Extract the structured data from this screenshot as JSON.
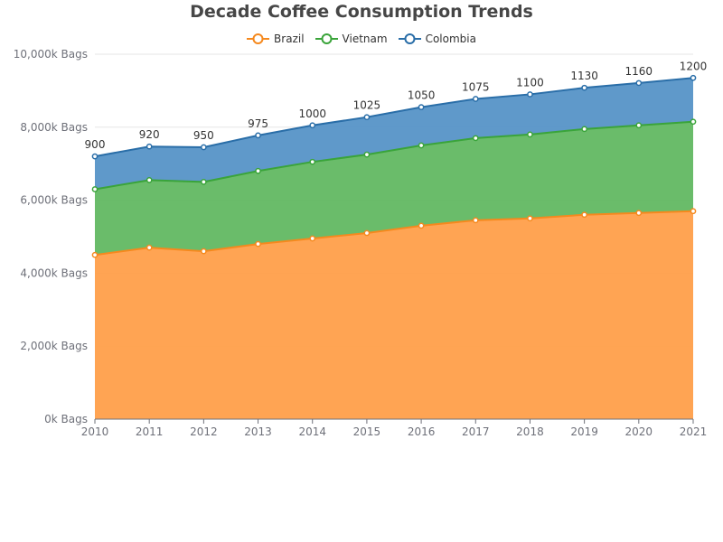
{
  "chart_data": {
    "type": "area",
    "stacked": true,
    "title": "Decade Coffee Consumption Trends",
    "xlabel": "",
    "ylabel": "",
    "x": [
      "2010",
      "2011",
      "2012",
      "2013",
      "2014",
      "2015",
      "2016",
      "2017",
      "2018",
      "2019",
      "2020",
      "2021"
    ],
    "ylim": [
      0,
      10000
    ],
    "y_ticks": [
      "0k Bags",
      "2,000k Bags",
      "4,000k Bags",
      "6,000k Bags",
      "8,000k Bags",
      "10,000k Bags"
    ],
    "y_tick_values": [
      0,
      2000,
      4000,
      6000,
      8000,
      10000
    ],
    "grid": true,
    "legend_position": "top",
    "series": [
      {
        "name": "Brazil",
        "color": "#ff9f4a",
        "line_color": "#f5891e",
        "values": [
          4500,
          4700,
          4600,
          4800,
          4950,
          5100,
          5300,
          5450,
          5500,
          5600,
          5650,
          5700
        ]
      },
      {
        "name": "Vietnam",
        "color": "#62b862",
        "line_color": "#3aa43a",
        "values": [
          1800,
          1850,
          1900,
          2000,
          2100,
          2150,
          2200,
          2250,
          2300,
          2350,
          2400,
          2450
        ]
      },
      {
        "name": "Colombia",
        "color": "#5694c7",
        "line_color": "#2a6ea8",
        "values": [
          900,
          920,
          950,
          975,
          1000,
          1025,
          1050,
          1075,
          1100,
          1130,
          1160,
          1200
        ]
      }
    ],
    "data_labels_series": "Colombia"
  }
}
